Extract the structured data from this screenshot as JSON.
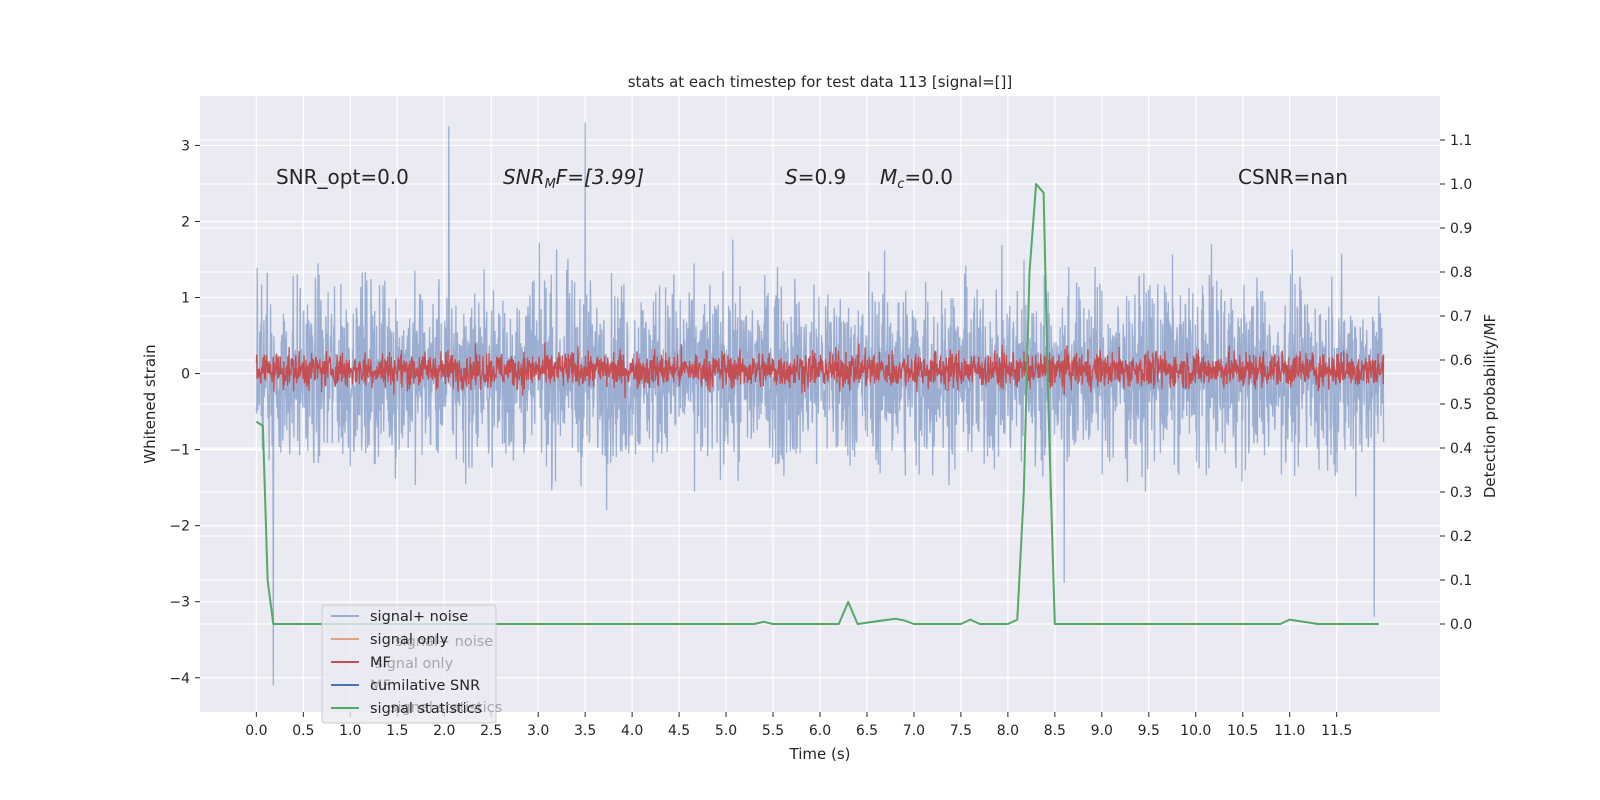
{
  "chart_data": {
    "type": "line",
    "title": "stats at each timestep for test data 113 [signal=[]]",
    "xlabel": "Time (s)",
    "ylabel": "Whitened strain",
    "ylabel_right": "Detection probability/MF",
    "xlim": [
      -0.6,
      12.6
    ],
    "ylim": [
      -4.45,
      3.65
    ],
    "ylim_right": [
      -0.2,
      1.2
    ],
    "x_ticks": [
      "0.0",
      "0.5",
      "1.0",
      "1.5",
      "2.0",
      "2.5",
      "3.0",
      "3.5",
      "4.0",
      "4.5",
      "5.0",
      "5.5",
      "6.0",
      "6.5",
      "7.0",
      "7.5",
      "8.0",
      "8.5",
      "9.0",
      "9.5",
      "10.0",
      "10.5",
      "11.0",
      "11.5"
    ],
    "y_ticks": [
      "−4",
      "−3",
      "−2",
      "−1",
      "0",
      "1",
      "2",
      "3"
    ],
    "y_ticks_right": [
      "0.0",
      "0.1",
      "0.2",
      "0.3",
      "0.4",
      "0.5",
      "0.6",
      "0.7",
      "0.8",
      "0.9",
      "1.0",
      "1.1"
    ],
    "grid": true,
    "legend_position": "lower-left",
    "colors": {
      "background": "#eaeaf2",
      "grid": "#ffffff",
      "signal_noise": "#4c72b0",
      "signal_only": "#dd8452",
      "mf": "#c44e52",
      "cumulative_snr": "#4c72b0",
      "signal_statistics": "#55a868"
    },
    "annotations": {
      "snr_opt": "SNR_opt=0.0",
      "snr_mf_main": "SNR",
      "snr_mf_sub": "M",
      "snr_mf_rest": "F=[3.99]",
      "s_sym": "S",
      "s_val": "=0.9",
      "mc_sym": "M",
      "mc_sub": "c",
      "mc_val": "=0.0",
      "csnr": "CSNR=nan"
    },
    "legend": [
      "signal+ noise",
      "signal only",
      "MF",
      "cumilative SNR",
      "signal statistics"
    ],
    "legend_ghost": [
      "signal+ noise",
      "signal only",
      "MF",
      "cumilative SNR",
      "signal statistics"
    ],
    "series": [
      {
        "name": "signal+ noise",
        "axis": "left",
        "description_band": "noisy whitened strain, t from 0.0 to 12.0 s",
        "t_range": [
          0.0,
          12.0
        ],
        "envelope_low": -2.2,
        "envelope_high": 2.2,
        "extremes": [
          [
            0.18,
            -4.1
          ],
          [
            2.05,
            3.25
          ],
          [
            3.5,
            3.3
          ],
          [
            8.6,
            -2.75
          ],
          [
            11.9,
            -3.2
          ]
        ]
      },
      {
        "name": "MF",
        "axis": "left",
        "t_range": [
          0.0,
          12.0
        ],
        "envelope_low": -0.42,
        "envelope_high": 0.78
      },
      {
        "name": "signal statistics",
        "axis": "right",
        "x": [
          0.0,
          0.07,
          0.12,
          0.18,
          0.5,
          1.0,
          2.0,
          3.0,
          4.0,
          5.0,
          5.3,
          5.4,
          5.5,
          6.0,
          6.2,
          6.3,
          6.4,
          6.8,
          6.9,
          7.0,
          7.5,
          7.6,
          7.7,
          8.0,
          8.1,
          8.17,
          8.23,
          8.3,
          8.38,
          8.43,
          8.5,
          9.0,
          9.5,
          10.0,
          10.7,
          10.9,
          11.0,
          11.3,
          11.6,
          11.95
        ],
        "y": [
          0.46,
          0.45,
          0.1,
          0.0,
          0.0,
          0.0,
          0.0,
          0.0,
          0.0,
          0.0,
          0.0,
          0.005,
          0.0,
          0.0,
          0.0,
          0.05,
          0.0,
          0.012,
          0.008,
          0.0,
          0.0,
          0.01,
          0.0,
          0.0,
          0.01,
          0.3,
          0.8,
          1.0,
          0.98,
          0.5,
          0.0,
          0.0,
          0.0,
          0.0,
          0.0,
          0.0,
          0.01,
          0.0,
          0.0,
          0.0
        ]
      }
    ]
  }
}
